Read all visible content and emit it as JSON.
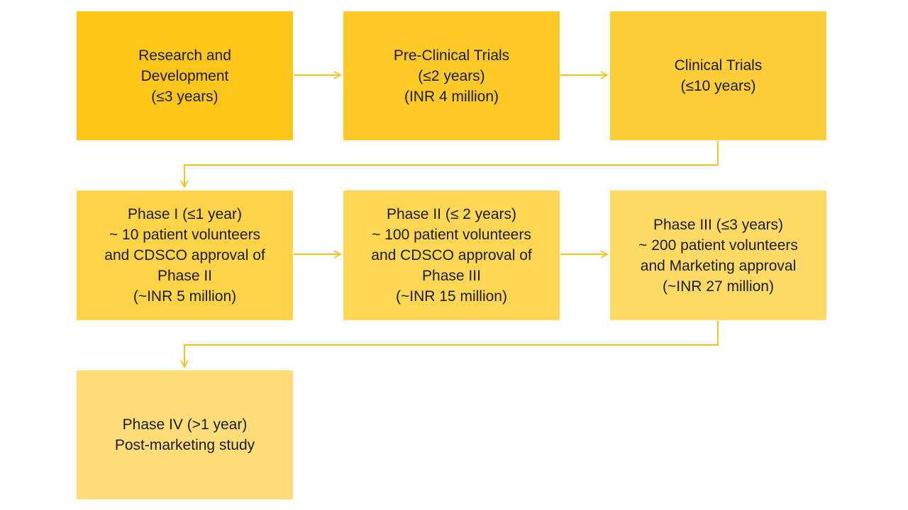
{
  "colors": {
    "stage_1": "#FFC61A",
    "stage_2": "#FFCA28",
    "stage_3": "#FFCD38",
    "stage_4": "#FFD446",
    "stage_5": "#FFD753",
    "stage_6": "#FFDB66",
    "stage_7": "#FFDE7A",
    "connector": "#F5C21B"
  },
  "stages": [
    {
      "lines": [
        "Research and",
        "Development",
        "(≤3 years)"
      ]
    },
    {
      "lines": [
        "Pre-Clinical Trials",
        "(≤2 years)",
        "(INR 4 million)"
      ]
    },
    {
      "lines": [
        "Clinical Trials",
        "(≤10 years)"
      ]
    },
    {
      "lines": [
        "Phase I (≤1 year)",
        "~ 10 patient volunteers",
        "and CDSCO approval of",
        "Phase II",
        "(~INR 5 million)"
      ]
    },
    {
      "lines": [
        "Phase II (≤ 2 years)",
        "~ 100 patient volunteers",
        "and CDSCO approval of",
        "Phase III",
        "(~INR 15 million)"
      ]
    },
    {
      "lines": [
        "Phase III (≤3 years)",
        "~ 200 patient volunteers",
        "and Marketing approval",
        "(~INR 27 million)"
      ]
    },
    {
      "lines": [
        "Phase IV (>1 year)",
        "Post-marketing study"
      ]
    }
  ]
}
